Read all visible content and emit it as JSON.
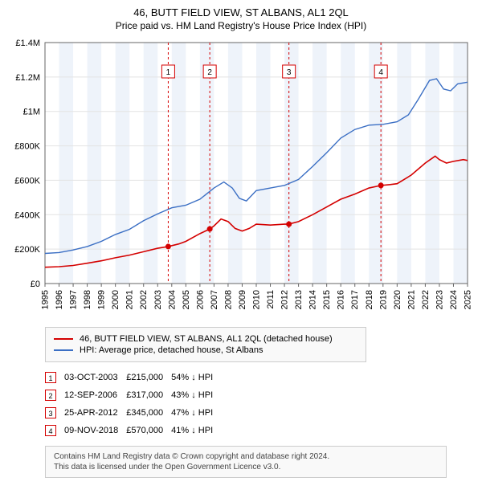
{
  "title": "46, BUTT FIELD VIEW, ST ALBANS, AL1 2QL",
  "subtitle": "Price paid vs. HM Land Registry's House Price Index (HPI)",
  "chart": {
    "type": "line",
    "background_color": "#ffffff",
    "grid_color": "#e3e3e3",
    "axis_color": "#666666",
    "band_color": "#eef3fa",
    "ylim": [
      0,
      1400000
    ],
    "ytick_step": 200000,
    "ytick_labels": [
      "£0",
      "£200K",
      "£400K",
      "£600K",
      "£800K",
      "£1M",
      "£1.2M",
      "£1.4M"
    ],
    "x_start_year": 1995,
    "x_end_year": 2025,
    "series": {
      "property": {
        "label": "46, BUTT FIELD VIEW, ST ALBANS, AL1 2QL (detached house)",
        "color": "#d40000",
        "line_width": 1.6,
        "points": [
          [
            1995.0,
            95000
          ],
          [
            1996.0,
            98000
          ],
          [
            1997.0,
            105000
          ],
          [
            1998.0,
            118000
          ],
          [
            1999.0,
            132000
          ],
          [
            2000.0,
            150000
          ],
          [
            2001.0,
            165000
          ],
          [
            2002.0,
            185000
          ],
          [
            2003.0,
            205000
          ],
          [
            2003.75,
            215000
          ],
          [
            2004.5,
            230000
          ],
          [
            2005.0,
            245000
          ],
          [
            2006.0,
            290000
          ],
          [
            2006.7,
            317000
          ],
          [
            2007.0,
            335000
          ],
          [
            2007.5,
            375000
          ],
          [
            2008.0,
            360000
          ],
          [
            2008.5,
            320000
          ],
          [
            2009.0,
            305000
          ],
          [
            2009.5,
            320000
          ],
          [
            2010.0,
            345000
          ],
          [
            2011.0,
            340000
          ],
          [
            2012.0,
            345000
          ],
          [
            2012.3,
            345000
          ],
          [
            2013.0,
            360000
          ],
          [
            2014.0,
            400000
          ],
          [
            2015.0,
            445000
          ],
          [
            2016.0,
            490000
          ],
          [
            2017.0,
            520000
          ],
          [
            2018.0,
            555000
          ],
          [
            2018.85,
            570000
          ],
          [
            2019.5,
            575000
          ],
          [
            2020.0,
            580000
          ],
          [
            2021.0,
            630000
          ],
          [
            2022.0,
            700000
          ],
          [
            2022.7,
            740000
          ],
          [
            2023.0,
            720000
          ],
          [
            2023.5,
            700000
          ],
          [
            2024.0,
            710000
          ],
          [
            2024.7,
            720000
          ],
          [
            2025.0,
            715000
          ]
        ]
      },
      "hpi": {
        "label": "HPI: Average price, detached house, St Albans",
        "color": "#3b6fc4",
        "line_width": 1.4,
        "points": [
          [
            1995.0,
            175000
          ],
          [
            1996.0,
            180000
          ],
          [
            1997.0,
            195000
          ],
          [
            1998.0,
            215000
          ],
          [
            1999.0,
            245000
          ],
          [
            2000.0,
            285000
          ],
          [
            2001.0,
            315000
          ],
          [
            2002.0,
            365000
          ],
          [
            2003.0,
            405000
          ],
          [
            2004.0,
            440000
          ],
          [
            2005.0,
            455000
          ],
          [
            2006.0,
            490000
          ],
          [
            2007.0,
            555000
          ],
          [
            2007.7,
            590000
          ],
          [
            2008.3,
            555000
          ],
          [
            2008.8,
            495000
          ],
          [
            2009.3,
            480000
          ],
          [
            2010.0,
            540000
          ],
          [
            2011.0,
            555000
          ],
          [
            2012.0,
            570000
          ],
          [
            2013.0,
            605000
          ],
          [
            2014.0,
            680000
          ],
          [
            2015.0,
            760000
          ],
          [
            2016.0,
            845000
          ],
          [
            2017.0,
            895000
          ],
          [
            2018.0,
            920000
          ],
          [
            2019.0,
            925000
          ],
          [
            2020.0,
            940000
          ],
          [
            2020.8,
            980000
          ],
          [
            2021.5,
            1070000
          ],
          [
            2022.3,
            1180000
          ],
          [
            2022.8,
            1190000
          ],
          [
            2023.3,
            1130000
          ],
          [
            2023.8,
            1120000
          ],
          [
            2024.3,
            1160000
          ],
          [
            2025.0,
            1170000
          ]
        ]
      }
    },
    "sales": [
      {
        "n": "1",
        "year": 2003.75,
        "price": 215000
      },
      {
        "n": "2",
        "year": 2006.7,
        "price": 317000
      },
      {
        "n": "3",
        "year": 2012.32,
        "price": 345000
      },
      {
        "n": "4",
        "year": 2018.85,
        "price": 570000
      }
    ],
    "marker_border_color": "#d40000",
    "marker_dash_color": "#d40000"
  },
  "sale_table": {
    "rows": [
      {
        "n": "1",
        "date": "03-OCT-2003",
        "price": "£215,000",
        "delta": "54% ↓ HPI"
      },
      {
        "n": "2",
        "date": "12-SEP-2006",
        "price": "£317,000",
        "delta": "43% ↓ HPI"
      },
      {
        "n": "3",
        "date": "25-APR-2012",
        "price": "£345,000",
        "delta": "47% ↓ HPI"
      },
      {
        "n": "4",
        "date": "09-NOV-2018",
        "price": "£570,000",
        "delta": "41% ↓ HPI"
      }
    ]
  },
  "attribution": {
    "line1": "Contains HM Land Registry data © Crown copyright and database right 2024.",
    "line2": "This data is licensed under the Open Government Licence v3.0."
  }
}
